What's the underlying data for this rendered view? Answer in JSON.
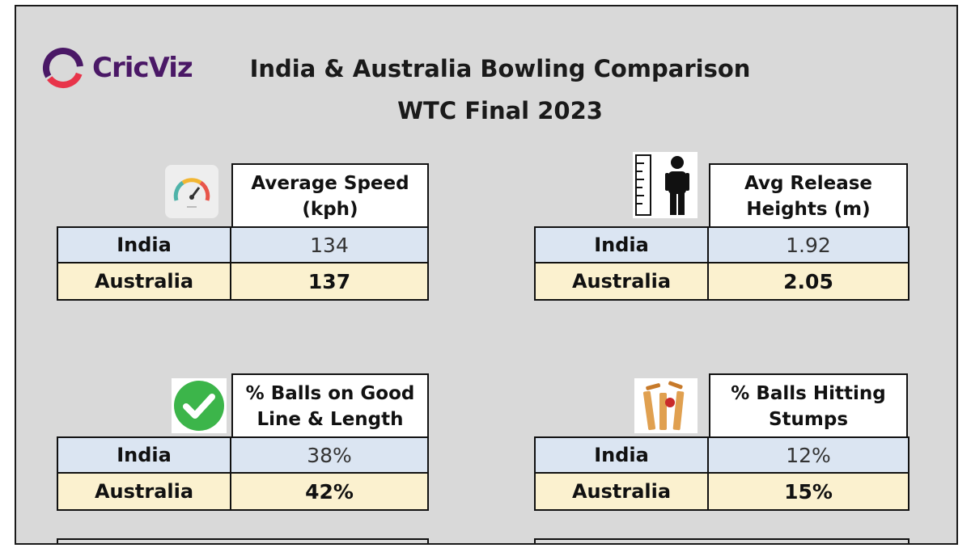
{
  "brand": {
    "name": "CricViz"
  },
  "titles": {
    "line1": "India & Australia Bowling Comparison",
    "line2": "WTC Final 2023"
  },
  "panels": [
    {
      "header": "Average Speed (kph)",
      "icon": "speedometer-icon",
      "rows": [
        {
          "team": "India",
          "value": "134"
        },
        {
          "team": "Australia",
          "value": "137"
        }
      ]
    },
    {
      "header": "Avg Release Heights (m)",
      "icon": "height-ruler-person-icon",
      "rows": [
        {
          "team": "India",
          "value": "1.92"
        },
        {
          "team": "Australia",
          "value": "2.05"
        }
      ]
    },
    {
      "header": "% Balls on Good Line & Length",
      "icon": "check-mark-icon",
      "rows": [
        {
          "team": "India",
          "value": "38%"
        },
        {
          "team": "Australia",
          "value": "42%"
        }
      ]
    },
    {
      "header": "% Balls Hitting Stumps",
      "icon": "cricket-stumps-icon",
      "rows": [
        {
          "team": "India",
          "value": "12%"
        },
        {
          "team": "Australia",
          "value": "15%"
        }
      ]
    }
  ],
  "colors": {
    "background": "#d9d9d9",
    "india_row": "#dbe5f2",
    "australia_row": "#fbf1cf",
    "brand": "#4a1866",
    "check": "#3cb54a"
  }
}
